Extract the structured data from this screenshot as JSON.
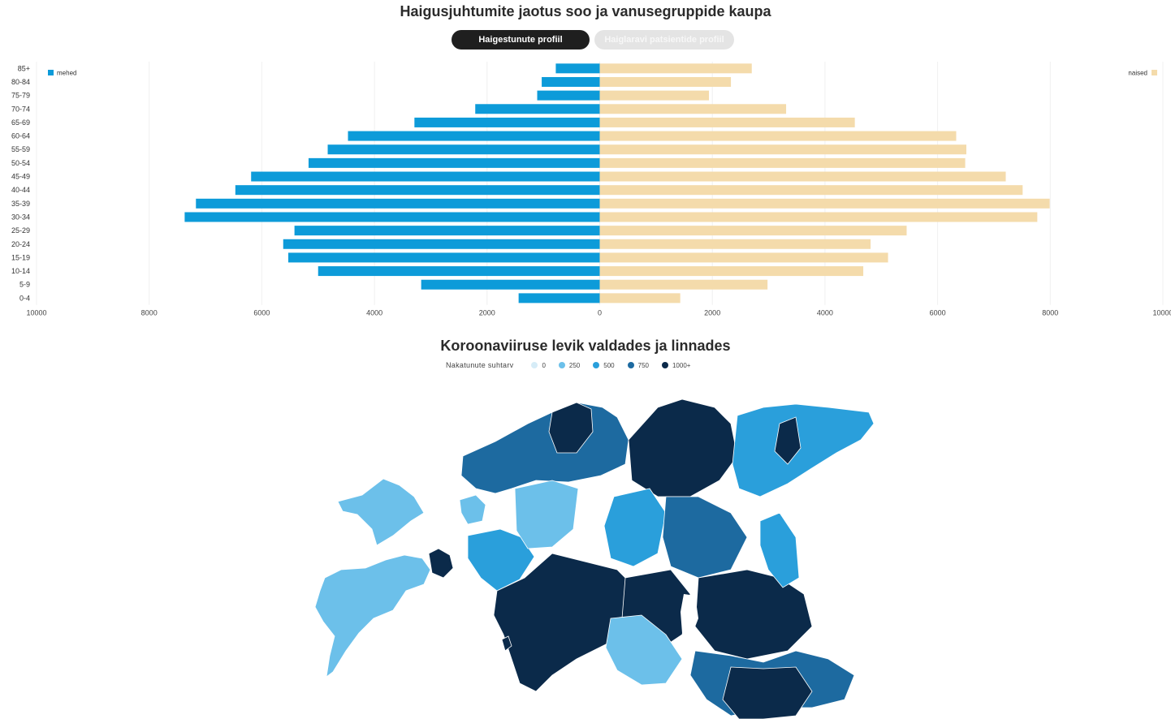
{
  "pyramid": {
    "title": "Haigusjuhtumite jaotus soo ja vanusegruppide kaupa",
    "tabs": [
      {
        "label": "Haigestunute profiil",
        "active": true
      },
      {
        "label": "Haiglaravi patsientide profiil",
        "active": false
      }
    ]
  },
  "map": {
    "title": "Koroonaviiruse levik valdades ja linnades",
    "legend_label": "Nakatunute suhtarv",
    "legend": [
      {
        "label": "0",
        "color": "#d6ecf7"
      },
      {
        "label": "250",
        "color": "#6cc0ea"
      },
      {
        "label": "500",
        "color": "#2a9fdb"
      },
      {
        "label": "750",
        "color": "#1d6aa0"
      },
      {
        "label": "1000+",
        "color": "#0b2a4a"
      }
    ]
  },
  "chart_data": {
    "type": "bar",
    "orientation": "horizontal",
    "layout": "population-pyramid",
    "categories": [
      "85+",
      "80-84",
      "75-79",
      "70-74",
      "65-69",
      "60-64",
      "55-59",
      "50-54",
      "45-49",
      "40-44",
      "35-39",
      "30-34",
      "25-29",
      "20-24",
      "15-19",
      "10-14",
      "5-9",
      "0-4"
    ],
    "series": [
      {
        "name": "mehed",
        "color": "#0d9bd9",
        "values": [
          780,
          1030,
          1110,
          2210,
          3290,
          4470,
          4830,
          5170,
          6190,
          6470,
          7170,
          7370,
          5420,
          5620,
          5530,
          5000,
          3170,
          1440
        ]
      },
      {
        "name": "naised",
        "color": "#f4dbab",
        "values": [
          2700,
          2330,
          1940,
          3310,
          4530,
          6330,
          6510,
          6490,
          7210,
          7510,
          7990,
          7770,
          5450,
          4810,
          5120,
          4680,
          2980,
          1430
        ]
      }
    ],
    "xlim": [
      -10000,
      10000
    ],
    "xticks": [
      "10000",
      "8000",
      "6000",
      "4000",
      "2000",
      "0",
      "2000",
      "4000",
      "6000",
      "8000",
      "10000"
    ],
    "xtick_values": [
      -10000,
      -8000,
      -6000,
      -4000,
      -2000,
      0,
      2000,
      4000,
      6000,
      8000,
      10000
    ],
    "legend_placement": "left: top-left, right: top-right",
    "grid": true
  }
}
